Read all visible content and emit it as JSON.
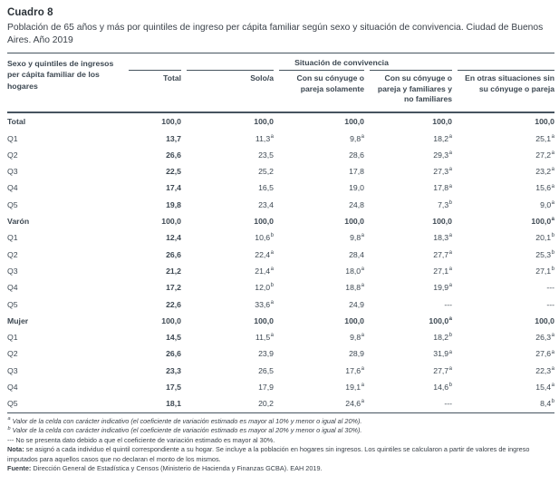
{
  "title": "Cuadro 8",
  "subtitle": "Población de 65 años y más por quintiles de ingreso per cápita familiar según sexo y situación de convivencia. Ciudad de Buenos Aires. Año 2019",
  "colors": {
    "text": "#3d4852",
    "line": "#46545f",
    "background": "#ffffff"
  },
  "table": {
    "stub_header": "Sexo y quintiles de ingresos per cápita familiar de los hogares",
    "group_header": "Situación de convivencia",
    "columns": [
      "Total",
      "Solo/a",
      "Con su cónyuge o pareja solamente",
      "Con su cónyuge o pareja y familiares y no familiares",
      "En otras situaciones sin su cónyuge o pareja"
    ],
    "rows": [
      {
        "label": "Total",
        "section": true,
        "cells": [
          {
            "v": "100,0"
          },
          {
            "v": "100,0"
          },
          {
            "v": "100,0"
          },
          {
            "v": "100,0"
          },
          {
            "v": "100,0"
          }
        ]
      },
      {
        "label": "Q1",
        "section": false,
        "cells": [
          {
            "v": "13,7"
          },
          {
            "v": "11,3",
            "s": "a"
          },
          {
            "v": "9,8",
            "s": "a"
          },
          {
            "v": "18,2",
            "s": "a"
          },
          {
            "v": "25,1",
            "s": "a"
          }
        ]
      },
      {
        "label": "Q2",
        "section": false,
        "cells": [
          {
            "v": "26,6"
          },
          {
            "v": "23,5"
          },
          {
            "v": "28,6"
          },
          {
            "v": "29,3",
            "s": "a"
          },
          {
            "v": "27,2",
            "s": "a"
          }
        ]
      },
      {
        "label": "Q3",
        "section": false,
        "cells": [
          {
            "v": "22,5"
          },
          {
            "v": "25,2"
          },
          {
            "v": "17,8"
          },
          {
            "v": "27,3",
            "s": "a"
          },
          {
            "v": "23,2",
            "s": "a"
          }
        ]
      },
      {
        "label": "Q4",
        "section": false,
        "cells": [
          {
            "v": "17,4"
          },
          {
            "v": "16,5"
          },
          {
            "v": "19,0"
          },
          {
            "v": "17,8",
            "s": "a"
          },
          {
            "v": "15,6",
            "s": "a"
          }
        ]
      },
      {
        "label": "Q5",
        "section": false,
        "cells": [
          {
            "v": "19,8"
          },
          {
            "v": "23,4"
          },
          {
            "v": "24,8"
          },
          {
            "v": "7,3",
            "s": "b"
          },
          {
            "v": "9,0",
            "s": "a"
          }
        ]
      },
      {
        "label": "Varón",
        "section": true,
        "cells": [
          {
            "v": "100,0"
          },
          {
            "v": "100,0"
          },
          {
            "v": "100,0"
          },
          {
            "v": "100,0"
          },
          {
            "v": "100,0",
            "s": "a"
          }
        ]
      },
      {
        "label": "Q1",
        "section": false,
        "cells": [
          {
            "v": "12,4"
          },
          {
            "v": "10,6",
            "s": "b"
          },
          {
            "v": "9,8",
            "s": "a"
          },
          {
            "v": "18,3",
            "s": "a"
          },
          {
            "v": "20,1",
            "s": "b"
          }
        ]
      },
      {
        "label": "Q2",
        "section": false,
        "cells": [
          {
            "v": "26,6"
          },
          {
            "v": "22,4",
            "s": "a"
          },
          {
            "v": "28,4"
          },
          {
            "v": "27,7",
            "s": "a"
          },
          {
            "v": "25,3",
            "s": "b"
          }
        ]
      },
      {
        "label": "Q3",
        "section": false,
        "cells": [
          {
            "v": "21,2"
          },
          {
            "v": "21,4",
            "s": "a"
          },
          {
            "v": "18,0",
            "s": "a"
          },
          {
            "v": "27,1",
            "s": "a"
          },
          {
            "v": "27,1",
            "s": "b"
          }
        ]
      },
      {
        "label": "Q4",
        "section": false,
        "cells": [
          {
            "v": "17,2"
          },
          {
            "v": "12,0",
            "s": "b"
          },
          {
            "v": "18,8",
            "s": "a"
          },
          {
            "v": "19,9",
            "s": "a"
          },
          {
            "v": "---"
          }
        ]
      },
      {
        "label": "Q5",
        "section": false,
        "cells": [
          {
            "v": "22,6"
          },
          {
            "v": "33,6",
            "s": "a"
          },
          {
            "v": "24,9"
          },
          {
            "v": "---"
          },
          {
            "v": "---"
          }
        ]
      },
      {
        "label": "Mujer",
        "section": true,
        "cells": [
          {
            "v": "100,0"
          },
          {
            "v": "100,0"
          },
          {
            "v": "100,0"
          },
          {
            "v": "100,0",
            "s": "a"
          },
          {
            "v": "100,0"
          }
        ]
      },
      {
        "label": "Q1",
        "section": false,
        "cells": [
          {
            "v": "14,5"
          },
          {
            "v": "11,5",
            "s": "a"
          },
          {
            "v": "9,8",
            "s": "a"
          },
          {
            "v": "18,2",
            "s": "b"
          },
          {
            "v": "26,3",
            "s": "a"
          }
        ]
      },
      {
        "label": "Q2",
        "section": false,
        "cells": [
          {
            "v": "26,6"
          },
          {
            "v": "23,9"
          },
          {
            "v": "28,9"
          },
          {
            "v": "31,9",
            "s": "a"
          },
          {
            "v": "27,6",
            "s": "a"
          }
        ]
      },
      {
        "label": "Q3",
        "section": false,
        "cells": [
          {
            "v": "23,3"
          },
          {
            "v": "26,5"
          },
          {
            "v": "17,6",
            "s": "a"
          },
          {
            "v": "27,7",
            "s": "a"
          },
          {
            "v": "22,3",
            "s": "a"
          }
        ]
      },
      {
        "label": "Q4",
        "section": false,
        "cells": [
          {
            "v": "17,5"
          },
          {
            "v": "17,9"
          },
          {
            "v": "19,1",
            "s": "a"
          },
          {
            "v": "14,6",
            "s": "b"
          },
          {
            "v": "15,4",
            "s": "a"
          }
        ]
      },
      {
        "label": "Q5",
        "section": false,
        "cells": [
          {
            "v": "18,1"
          },
          {
            "v": "20,2"
          },
          {
            "v": "24,6",
            "s": "a"
          },
          {
            "v": "---"
          },
          {
            "v": "8,4",
            "s": "b"
          }
        ]
      }
    ]
  },
  "footnotes": {
    "a_marker": "a",
    "a_text": "Valor de la celda con carácter indicativo (el coeficiente de variación estimado es mayor al 10% y menor o igual al 20%).",
    "b_marker": "b",
    "b_text": "Valor de la celda con carácter indicativo (el coeficiente de variación estimado es mayor al 20% y menor o igual al 30%).",
    "dash_text": "--- No se presenta dato debido a que el coeficiente de variación estimado es mayor al 30%.",
    "nota_label": "Nota:",
    "nota_text": " se asignó a cada individuo el quintil correspondiente a su hogar. Se incluye a la población en hogares sin ingresos. Los quintiles se calcularon a partir de valores de ingreso imputados para aquellos casos que no declaran el monto de los mismos.",
    "fuente_label": "Fuente:",
    "fuente_text": " Dirección General de Estadística y Censos (Ministerio de Hacienda y Finanzas GCBA). EAH 2019."
  }
}
